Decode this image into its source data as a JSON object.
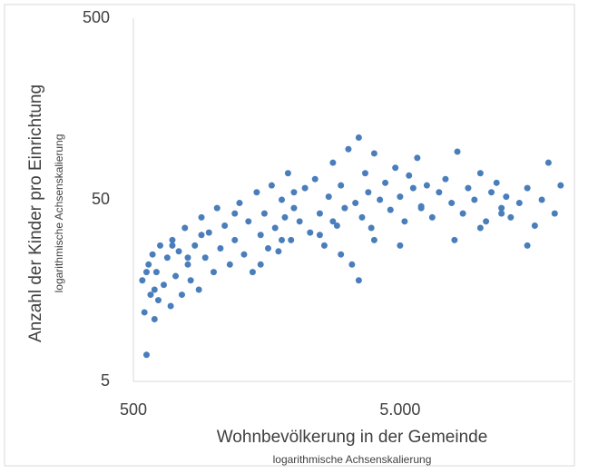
{
  "chart_data": {
    "type": "scatter",
    "y_label": "Anzahl der Kinder pro Einrichtung",
    "y_sublabel": "logarithmische Achsenskalierung",
    "x_label": "Wohnbevölkerung in der Gemeinde",
    "x_sublabel": "logarithmische Achsenskalierung",
    "color": "#4a7ebb",
    "x_log": true,
    "y_log": true,
    "xlim": [
      500,
      22000
    ],
    "ylim": [
      5,
      500
    ],
    "xticks": [
      500,
      {
        "value": 5000,
        "label": "5.000"
      }
    ],
    "yticks": [
      5,
      50,
      500
    ],
    "x": [
      540,
      550,
      560,
      570,
      580,
      590,
      600,
      610,
      620,
      630,
      650,
      670,
      690,
      700,
      720,
      740,
      760,
      780,
      800,
      820,
      850,
      880,
      900,
      930,
      960,
      1000,
      1030,
      1060,
      1100,
      1150,
      1200,
      1250,
      1300,
      1350,
      1400,
      1450,
      1500,
      1550,
      1600,
      1650,
      1700,
      1750,
      1800,
      1850,
      1900,
      1950,
      2000,
      2100,
      2200,
      2300,
      2400,
      2500,
      2600,
      2700,
      2800,
      2900,
      3000,
      3100,
      3200,
      3300,
      3400,
      3500,
      3600,
      3700,
      3800,
      3900,
      4000,
      4200,
      4400,
      4600,
      4800,
      5000,
      5200,
      5400,
      5600,
      5800,
      6000,
      6300,
      6600,
      7000,
      7400,
      7800,
      8200,
      8600,
      9000,
      9500,
      10000,
      10500,
      11000,
      11500,
      12000,
      12500,
      13000,
      14000,
      15000,
      16000,
      17000,
      18000,
      19000,
      20000,
      560,
      600,
      700,
      900,
      1200,
      1500,
      2000,
      2500,
      3000,
      3500,
      4000,
      5000,
      6000,
      8000,
      10000,
      12000,
      15000,
      800,
      1800,
      2800
    ],
    "values": [
      18,
      12,
      7,
      22,
      15,
      25,
      11,
      20,
      14,
      28,
      17,
      24,
      13,
      30,
      19,
      26,
      15,
      35,
      22,
      18,
      28,
      16,
      40,
      24,
      33,
      20,
      45,
      27,
      36,
      22,
      30,
      48,
      25,
      38,
      20,
      55,
      32,
      42,
      27,
      60,
      35,
      26,
      50,
      40,
      70,
      30,
      45,
      38,
      58,
      33,
      65,
      42,
      28,
      52,
      80,
      36,
      60,
      45,
      95,
      22,
      48,
      110,
      40,
      70,
      55,
      35,
      90,
      50,
      62,
      44,
      75,
      52,
      38,
      68,
      58,
      85,
      46,
      60,
      40,
      55,
      65,
      48,
      92,
      42,
      58,
      50,
      70,
      38,
      55,
      62,
      45,
      52,
      40,
      48,
      58,
      36,
      50,
      80,
      42,
      60,
      20,
      16,
      28,
      32,
      42,
      22,
      55,
      32,
      25,
      18,
      30,
      28,
      45,
      30,
      35,
      42,
      28,
      24,
      30,
      38
    ]
  }
}
